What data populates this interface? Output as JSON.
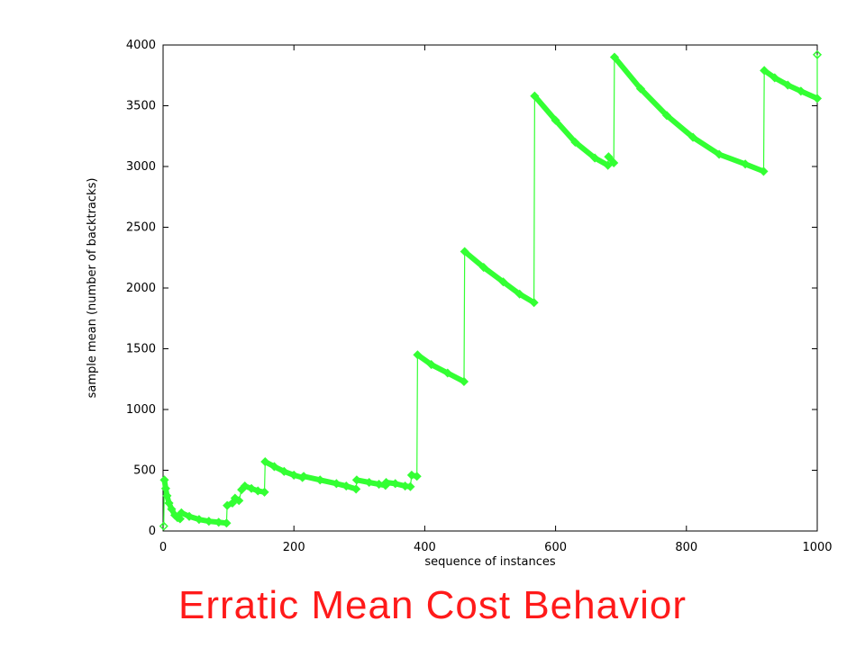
{
  "slide": {
    "title": "Erratic Mean Cost Behavior"
  },
  "colors": {
    "series": "#33ff33",
    "title": "#ff1a1a",
    "axis": "#000000"
  },
  "chart_data": {
    "type": "line",
    "title": "",
    "xlabel": "sequence of instances",
    "ylabel": "sample mean (number of backtracks)",
    "xlim": [
      0,
      1000
    ],
    "ylim": [
      0,
      4000
    ],
    "xticks": [
      0,
      200,
      400,
      600,
      800,
      1000
    ],
    "yticks": [
      0,
      500,
      1000,
      1500,
      2000,
      2500,
      3000,
      3500,
      4000
    ],
    "grid": false,
    "legend": "none",
    "series": [
      {
        "points": [
          [
            1,
            40
          ],
          [
            2,
            420
          ],
          [
            4,
            350
          ],
          [
            6,
            290
          ],
          [
            9,
            230
          ],
          [
            13,
            180
          ],
          [
            18,
            130
          ],
          [
            22,
            110
          ],
          [
            26,
            100
          ],
          [
            28,
            150
          ],
          [
            40,
            120
          ],
          [
            55,
            95
          ],
          [
            70,
            80
          ],
          [
            85,
            72
          ],
          [
            97,
            65
          ],
          [
            98,
            210
          ],
          [
            106,
            230
          ],
          [
            110,
            270
          ],
          [
            116,
            250
          ],
          [
            120,
            340
          ],
          [
            125,
            370
          ],
          [
            135,
            350
          ],
          [
            145,
            330
          ],
          [
            155,
            320
          ],
          [
            156,
            570
          ],
          [
            170,
            530
          ],
          [
            185,
            490
          ],
          [
            200,
            460
          ],
          [
            213,
            440
          ],
          [
            215,
            450
          ],
          [
            240,
            420
          ],
          [
            265,
            390
          ],
          [
            280,
            370
          ],
          [
            295,
            345
          ],
          [
            296,
            420
          ],
          [
            315,
            400
          ],
          [
            330,
            385
          ],
          [
            340,
            375
          ],
          [
            341,
            400
          ],
          [
            355,
            390
          ],
          [
            370,
            370
          ],
          [
            378,
            365
          ],
          [
            380,
            460
          ],
          [
            388,
            450
          ],
          [
            389,
            1450
          ],
          [
            410,
            1370
          ],
          [
            435,
            1300
          ],
          [
            460,
            1230
          ],
          [
            461,
            2300
          ],
          [
            490,
            2170
          ],
          [
            520,
            2050
          ],
          [
            545,
            1950
          ],
          [
            567,
            1880
          ],
          [
            568,
            3580
          ],
          [
            600,
            3380
          ],
          [
            630,
            3200
          ],
          [
            660,
            3070
          ],
          [
            680,
            3010
          ],
          [
            681,
            3080
          ],
          [
            689,
            3030
          ],
          [
            690,
            3900
          ],
          [
            730,
            3640
          ],
          [
            770,
            3420
          ],
          [
            810,
            3240
          ],
          [
            850,
            3100
          ],
          [
            890,
            3020
          ],
          [
            918,
            2960
          ],
          [
            919,
            3790
          ],
          [
            935,
            3730
          ],
          [
            955,
            3670
          ],
          [
            975,
            3620
          ],
          [
            1000,
            3560
          ],
          [
            1000,
            3920
          ]
        ]
      }
    ]
  }
}
